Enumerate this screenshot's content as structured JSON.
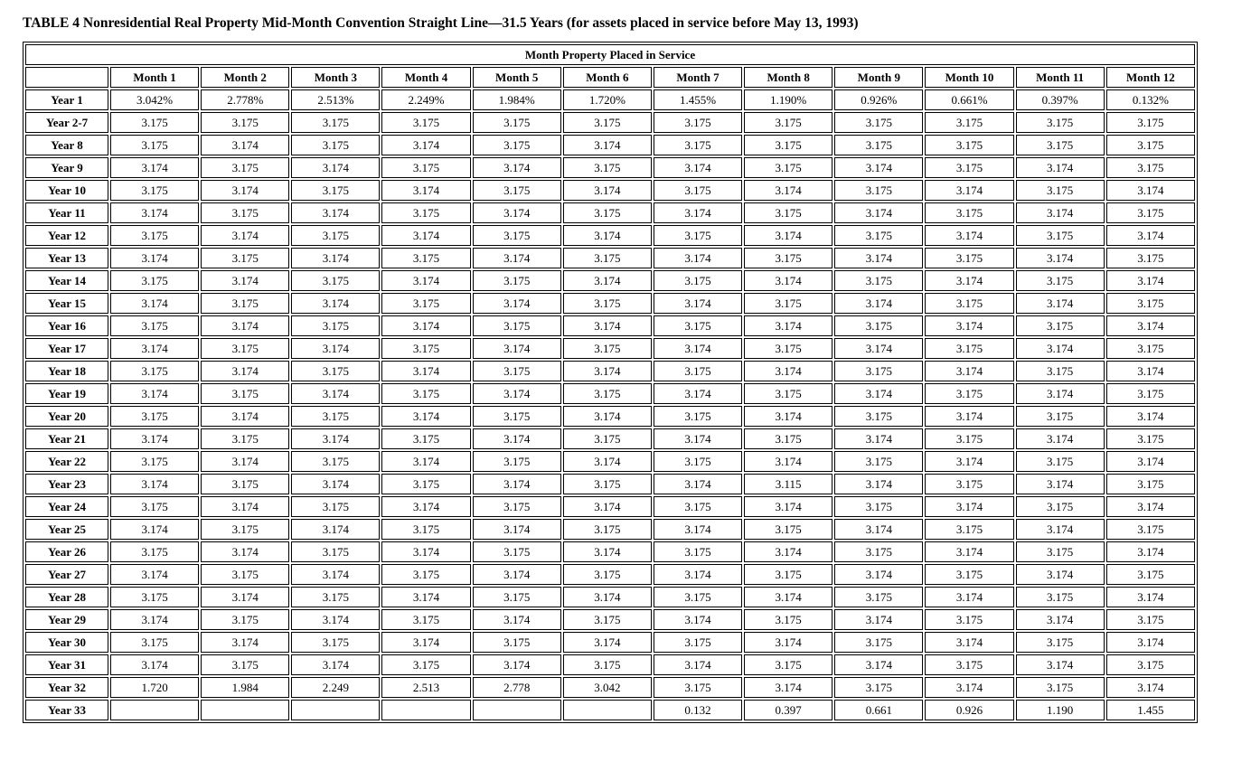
{
  "colors": {
    "text": "#000000",
    "background": "#ffffff",
    "border": "#000000"
  },
  "title": "TABLE 4 Nonresidential Real Property Mid-Month Convention Straight Line—31.5 Years (for assets placed in service before May 13, 1993)",
  "table": {
    "group_header": "Month Property Placed in Service",
    "corner_label": "",
    "column_headers": [
      "Month 1",
      "Month 2",
      "Month 3",
      "Month 4",
      "Month 5",
      "Month 6",
      "Month 7",
      "Month 8",
      "Month 9",
      "Month 10",
      "Month 11",
      "Month 12"
    ],
    "rows": [
      {
        "label": "Year 1",
        "values": [
          "3.042%",
          "2.778%",
          "2.513%",
          "2.249%",
          "1.984%",
          "1.720%",
          "1.455%",
          "1.190%",
          "0.926%",
          "0.661%",
          "0.397%",
          "0.132%"
        ]
      },
      {
        "label": "Year 2-7",
        "values": [
          "3.175",
          "3.175",
          "3.175",
          "3.175",
          "3.175",
          "3.175",
          "3.175",
          "3.175",
          "3.175",
          "3.175",
          "3.175",
          "3.175"
        ]
      },
      {
        "label": "Year 8",
        "values": [
          "3.175",
          "3.174",
          "3.175",
          "3.174",
          "3.175",
          "3.174",
          "3.175",
          "3.175",
          "3.175",
          "3.175",
          "3.175",
          "3.175"
        ]
      },
      {
        "label": "Year 9",
        "values": [
          "3.174",
          "3.175",
          "3.174",
          "3.175",
          "3.174",
          "3.175",
          "3.174",
          "3.175",
          "3.174",
          "3.175",
          "3.174",
          "3.175"
        ]
      },
      {
        "label": "Year 10",
        "values": [
          "3.175",
          "3.174",
          "3.175",
          "3.174",
          "3.175",
          "3.174",
          "3.175",
          "3.174",
          "3.175",
          "3.174",
          "3.175",
          "3.174"
        ]
      },
      {
        "label": "Year 11",
        "values": [
          "3.174",
          "3.175",
          "3.174",
          "3.175",
          "3.174",
          "3.175",
          "3.174",
          "3.175",
          "3.174",
          "3.175",
          "3.174",
          "3.175"
        ]
      },
      {
        "label": "Year 12",
        "values": [
          "3.175",
          "3.174",
          "3.175",
          "3.174",
          "3.175",
          "3.174",
          "3.175",
          "3.174",
          "3.175",
          "3.174",
          "3.175",
          "3.174"
        ]
      },
      {
        "label": "Year 13",
        "values": [
          "3.174",
          "3.175",
          "3.174",
          "3.175",
          "3.174",
          "3.175",
          "3.174",
          "3.175",
          "3.174",
          "3.175",
          "3.174",
          "3.175"
        ]
      },
      {
        "label": "Year 14",
        "values": [
          "3.175",
          "3.174",
          "3.175",
          "3.174",
          "3.175",
          "3.174",
          "3.175",
          "3.174",
          "3.175",
          "3.174",
          "3.175",
          "3.174"
        ]
      },
      {
        "label": "Year 15",
        "values": [
          "3.174",
          "3.175",
          "3.174",
          "3.175",
          "3.174",
          "3.175",
          "3.174",
          "3.175",
          "3.174",
          "3.175",
          "3.174",
          "3.175"
        ]
      },
      {
        "label": "Year 16",
        "values": [
          "3.175",
          "3.174",
          "3.175",
          "3.174",
          "3.175",
          "3.174",
          "3.175",
          "3.174",
          "3.175",
          "3.174",
          "3.175",
          "3.174"
        ]
      },
      {
        "label": "Year 17",
        "values": [
          "3.174",
          "3.175",
          "3.174",
          "3.175",
          "3.174",
          "3.175",
          "3.174",
          "3.175",
          "3.174",
          "3.175",
          "3.174",
          "3.175"
        ]
      },
      {
        "label": "Year 18",
        "values": [
          "3.175",
          "3.174",
          "3.175",
          "3.174",
          "3.175",
          "3.174",
          "3.175",
          "3.174",
          "3.175",
          "3.174",
          "3.175",
          "3.174"
        ]
      },
      {
        "label": "Year 19",
        "values": [
          "3.174",
          "3.175",
          "3.174",
          "3.175",
          "3.174",
          "3.175",
          "3.174",
          "3.175",
          "3.174",
          "3.175",
          "3.174",
          "3.175"
        ]
      },
      {
        "label": "Year 20",
        "values": [
          "3.175",
          "3.174",
          "3.175",
          "3.174",
          "3.175",
          "3.174",
          "3.175",
          "3.174",
          "3.175",
          "3.174",
          "3.175",
          "3.174"
        ]
      },
      {
        "label": "Year 21",
        "values": [
          "3.174",
          "3.175",
          "3.174",
          "3.175",
          "3.174",
          "3.175",
          "3.174",
          "3.175",
          "3.174",
          "3.175",
          "3.174",
          "3.175"
        ]
      },
      {
        "label": "Year 22",
        "values": [
          "3.175",
          "3.174",
          "3.175",
          "3.174",
          "3.175",
          "3.174",
          "3.175",
          "3.174",
          "3.175",
          "3.174",
          "3.175",
          "3.174"
        ]
      },
      {
        "label": "Year 23",
        "values": [
          "3.174",
          "3.175",
          "3.174",
          "3.175",
          "3.174",
          "3.175",
          "3.174",
          "3.115",
          "3.174",
          "3.175",
          "3.174",
          "3.175"
        ]
      },
      {
        "label": "Year 24",
        "values": [
          "3.175",
          "3.174",
          "3.175",
          "3.174",
          "3.175",
          "3.174",
          "3.175",
          "3.174",
          "3.175",
          "3.174",
          "3.175",
          "3.174"
        ]
      },
      {
        "label": "Year 25",
        "values": [
          "3.174",
          "3.175",
          "3.174",
          "3.175",
          "3.174",
          "3.175",
          "3.174",
          "3.175",
          "3.174",
          "3.175",
          "3.174",
          "3.175"
        ]
      },
      {
        "label": "Year 26",
        "values": [
          "3.175",
          "3.174",
          "3.175",
          "3.174",
          "3.175",
          "3.174",
          "3.175",
          "3.174",
          "3.175",
          "3.174",
          "3.175",
          "3.174"
        ]
      },
      {
        "label": "Year 27",
        "values": [
          "3.174",
          "3.175",
          "3.174",
          "3.175",
          "3.174",
          "3.175",
          "3.174",
          "3.175",
          "3.174",
          "3.175",
          "3.174",
          "3.175"
        ]
      },
      {
        "label": "Year 28",
        "values": [
          "3.175",
          "3.174",
          "3.175",
          "3.174",
          "3.175",
          "3.174",
          "3.175",
          "3.174",
          "3.175",
          "3.174",
          "3.175",
          "3.174"
        ]
      },
      {
        "label": "Year 29",
        "values": [
          "3.174",
          "3.175",
          "3.174",
          "3.175",
          "3.174",
          "3.175",
          "3.174",
          "3.175",
          "3.174",
          "3.175",
          "3.174",
          "3.175"
        ]
      },
      {
        "label": "Year 30",
        "values": [
          "3.175",
          "3.174",
          "3.175",
          "3.174",
          "3.175",
          "3.174",
          "3.175",
          "3.174",
          "3.175",
          "3.174",
          "3.175",
          "3.174"
        ]
      },
      {
        "label": "Year 31",
        "values": [
          "3.174",
          "3.175",
          "3.174",
          "3.175",
          "3.174",
          "3.175",
          "3.174",
          "3.175",
          "3.174",
          "3.175",
          "3.174",
          "3.175"
        ]
      },
      {
        "label": "Year 32",
        "values": [
          "1.720",
          "1.984",
          "2.249",
          "2.513",
          "2.778",
          "3.042",
          "3.175",
          "3.174",
          "3.175",
          "3.174",
          "3.175",
          "3.174"
        ]
      },
      {
        "label": "Year 33",
        "values": [
          "",
          "",
          "",
          "",
          "",
          "",
          "0.132",
          "0.397",
          "0.661",
          "0.926",
          "1.190",
          "1.455"
        ]
      }
    ]
  }
}
